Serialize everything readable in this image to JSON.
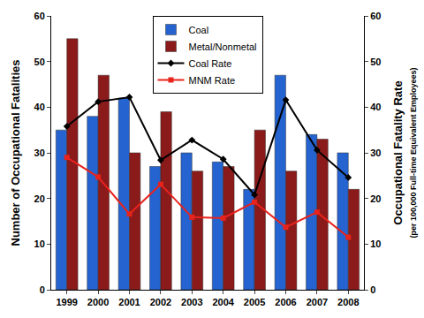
{
  "chart_data": {
    "type": "bar",
    "categories": [
      "1999",
      "2000",
      "2001",
      "2002",
      "2003",
      "2004",
      "2005",
      "2006",
      "2007",
      "2008"
    ],
    "ylabel": "Number of Occupational Fatalities",
    "y2label": [
      "Occupational Fatality Rate",
      "(per 100,000 Full-time Equivalent Employees)"
    ],
    "ylim": [
      0,
      60
    ],
    "yticks": [
      0,
      10,
      20,
      30,
      40,
      50,
      60
    ],
    "y2lim": [
      0,
      60
    ],
    "y2ticks": [
      0,
      10,
      20,
      30,
      40,
      50,
      60
    ],
    "legend": "top",
    "grid": false,
    "series": [
      {
        "name": "Coal",
        "type": "bar",
        "color": "#2563d0",
        "values": [
          35,
          38,
          42,
          27,
          30,
          28,
          22,
          47,
          34,
          30
        ]
      },
      {
        "name": "Metal/Nonmetal",
        "type": "bar",
        "color": "#8b1a1a",
        "values": [
          55,
          47,
          30,
          39,
          26,
          27,
          35,
          26,
          33,
          22
        ]
      },
      {
        "name": "Coal Rate",
        "type": "line",
        "axis": "y2",
        "color": "#000000",
        "marker": "diamond",
        "line_style": "solid",
        "values": [
          35.8,
          41.2,
          42.2,
          28.4,
          32.8,
          28.6,
          20.8,
          41.6,
          30.6,
          24.6
        ]
      },
      {
        "name": "MNM Rate",
        "type": "line",
        "axis": "y2",
        "color": "#e8231c",
        "marker": "square",
        "line_style": "solid",
        "values": [
          29.0,
          24.7,
          16.6,
          23.1,
          15.9,
          15.7,
          19.2,
          13.7,
          17.0,
          11.5
        ]
      }
    ]
  }
}
